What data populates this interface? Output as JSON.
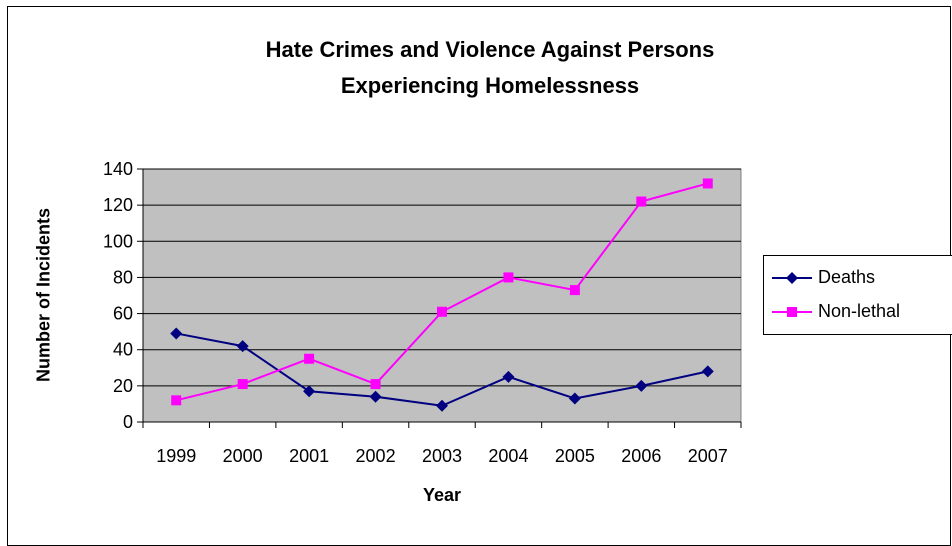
{
  "chart_data": {
    "type": "line",
    "title": [
      "Hate Crimes and Violence Against Persons",
      "Experiencing Homelessness"
    ],
    "xlabel": "Year",
    "ylabel": "Number of Incidents",
    "categories": [
      "1999",
      "2000",
      "2001",
      "2002",
      "2003",
      "2004",
      "2005",
      "2006",
      "2007"
    ],
    "ylim": [
      0,
      140
    ],
    "yticks": [
      "0",
      "20",
      "40",
      "60",
      "80",
      "100",
      "120",
      "140"
    ],
    "grid": true,
    "legend_position": "right",
    "plot_background": "#c0c0c0",
    "series": [
      {
        "name": "Deaths",
        "color": "#000080",
        "marker": "diamond",
        "values": [
          49,
          42,
          17,
          14,
          9,
          25,
          13,
          20,
          28
        ]
      },
      {
        "name": "Non-lethal",
        "color": "#ff00ff",
        "marker": "square",
        "values": [
          12,
          21,
          35,
          21,
          61,
          80,
          73,
          122,
          132
        ]
      }
    ]
  }
}
